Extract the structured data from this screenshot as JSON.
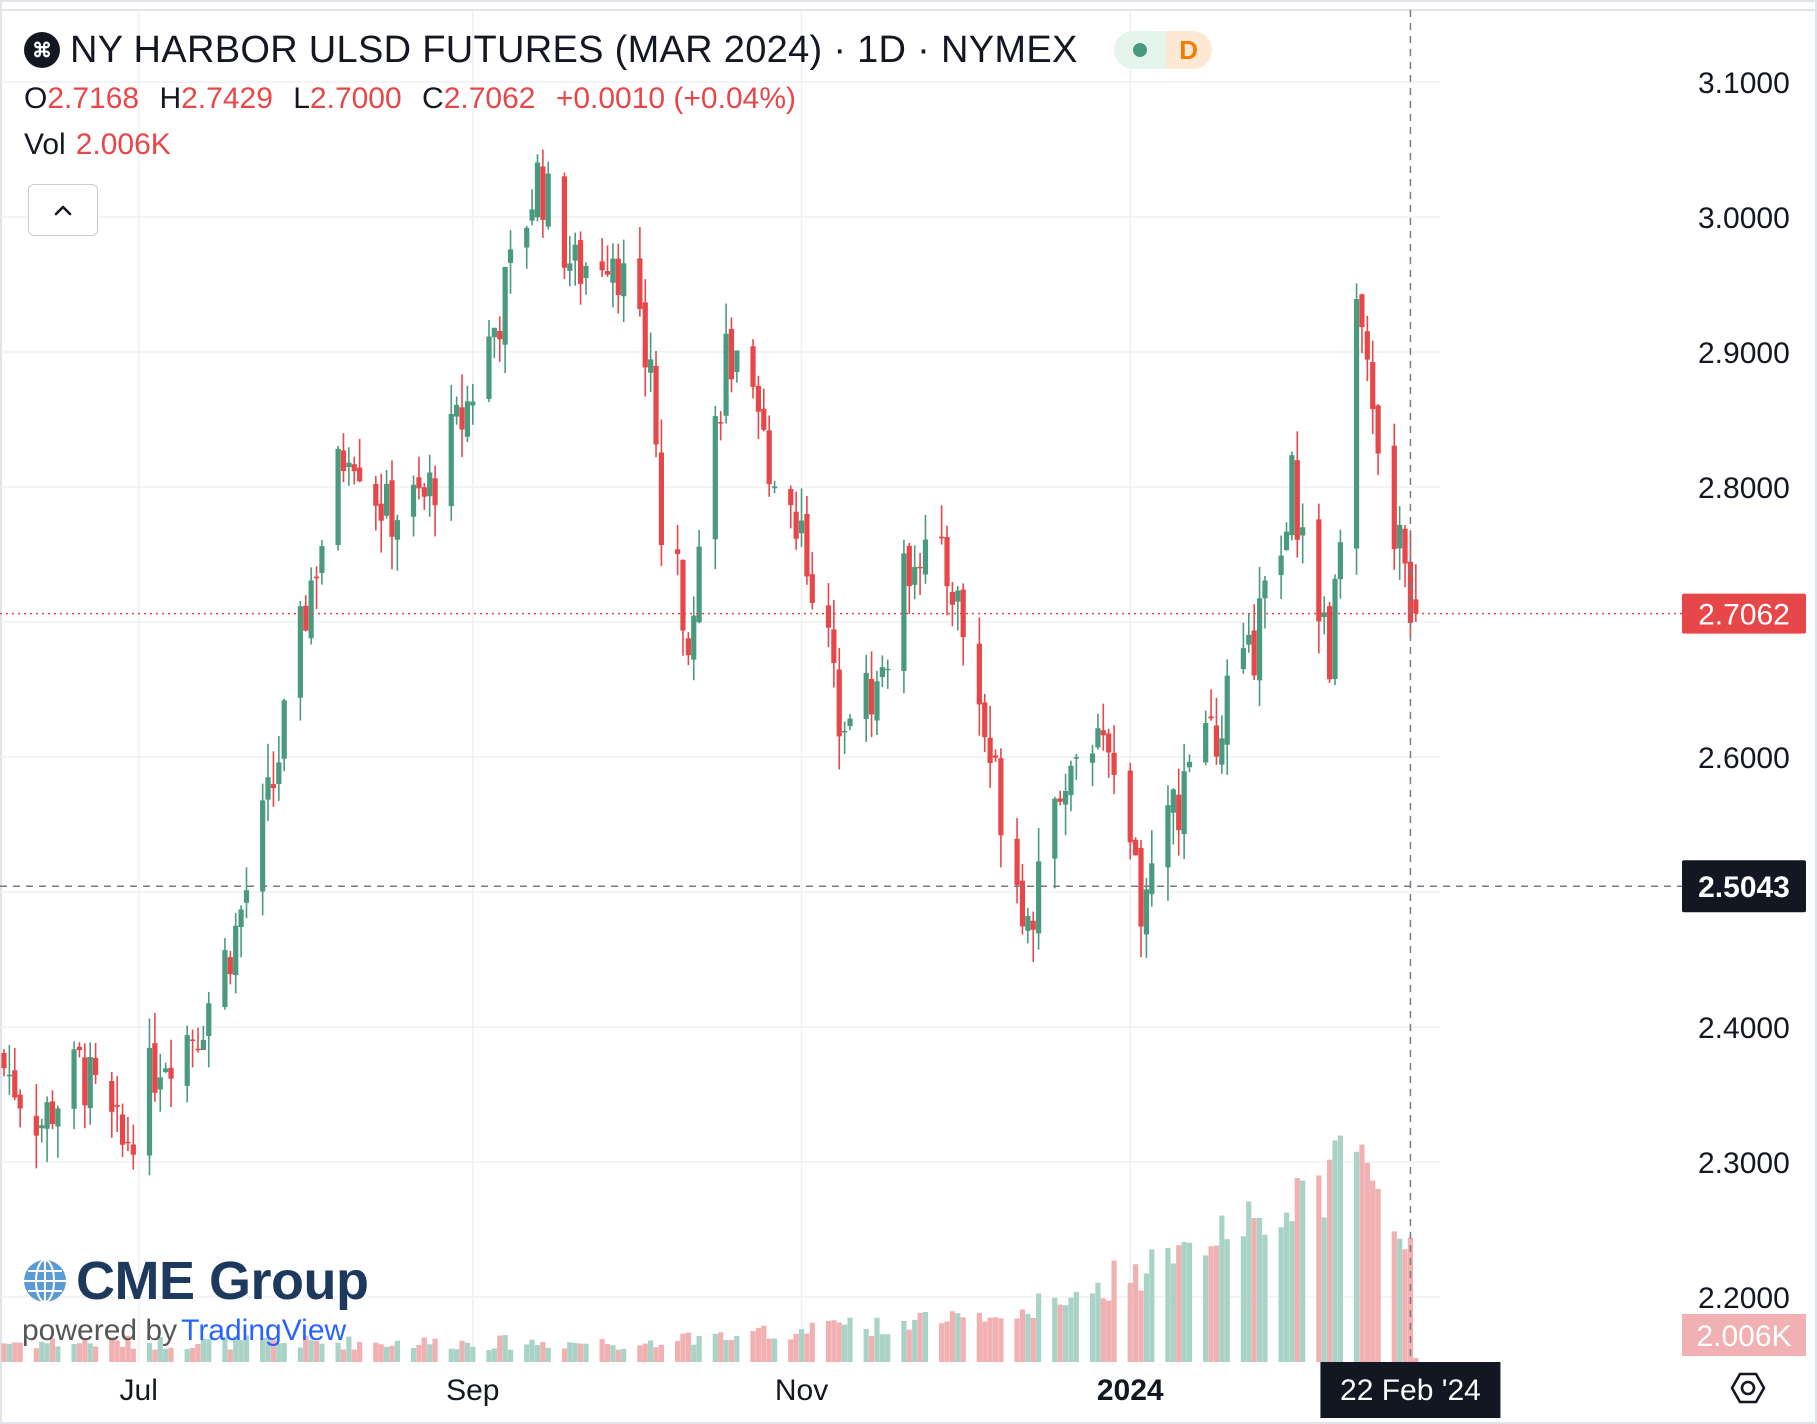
{
  "header": {
    "title": "NY HARBOR ULSD FUTURES (MAR 2024) · 1D · NYMEX",
    "interval_badge": "D",
    "ohlc": {
      "o_label": "O",
      "o_value": "2.7168",
      "h_label": "H",
      "h_value": "2.7429",
      "l_label": "L",
      "l_value": "2.7000",
      "c_label": "C",
      "c_value": "2.7062",
      "change": "+0.0010 (+0.04%)"
    },
    "vol_label": "Vol",
    "vol_value": "2.006K"
  },
  "branding": {
    "logo_text": "CME Group",
    "powered_by": "powered by",
    "tradingview": "TradingView"
  },
  "colors": {
    "up": "#4a9a7f",
    "down": "#e8474a",
    "up_volume": "#a8d3c6",
    "down_volume": "#f1b0b1",
    "grid": "#eef0f3",
    "axis_text": "#131722"
  },
  "icons": {
    "symbol": "cme-symbol-icon",
    "collapse": "chevron-up-icon",
    "settings": "settings-icon",
    "logo": "globe-icon"
  },
  "chart_data": {
    "type": "candlestick",
    "title": "NY HARBOR ULSD FUTURES (MAR 2024) · 1D · NYMEX",
    "y_ticks": [
      "3.1000",
      "3.0000",
      "2.9000",
      "2.8000",
      "2.7000",
      "2.6000",
      "2.5000",
      "2.4000",
      "2.3000",
      "2.2000"
    ],
    "y_tick_values": [
      3.1,
      3.0,
      2.9,
      2.8,
      2.7,
      2.6,
      2.5,
      2.4,
      2.3,
      2.2
    ],
    "ylim": [
      2.12,
      3.15
    ],
    "x_labels": [
      {
        "label": "Jul",
        "date": "2023-07-01"
      },
      {
        "label": "Sep",
        "date": "2023-09-01"
      },
      {
        "label": "Nov",
        "date": "2023-11-01"
      },
      {
        "label": "2024",
        "date": "2024-01-01",
        "bold": true
      }
    ],
    "x_range": [
      "2023-06-06",
      "2024-02-26"
    ],
    "last_price": "2.7062",
    "last_price_value": 2.7062,
    "crosshair_price": "2.5043",
    "crosshair_price_value": 2.5043,
    "crosshair_date": "22 Feb '24",
    "crosshair_date_value": "2024-02-22",
    "last_volume_label": "2.006K",
    "grid": true,
    "candle_anchors": [
      {
        "date": "2023-06-06",
        "close": 2.37
      },
      {
        "date": "2023-06-13",
        "close": 2.33
      },
      {
        "date": "2023-06-20",
        "close": 2.37
      },
      {
        "date": "2023-06-28",
        "close": 2.31
      },
      {
        "date": "2023-07-05",
        "close": 2.38
      },
      {
        "date": "2023-07-12",
        "close": 2.4
      },
      {
        "date": "2023-07-19",
        "close": 2.47
      },
      {
        "date": "2023-07-26",
        "close": 2.58
      },
      {
        "date": "2023-08-02",
        "close": 2.73
      },
      {
        "date": "2023-08-09",
        "close": 2.84
      },
      {
        "date": "2023-08-16",
        "close": 2.78
      },
      {
        "date": "2023-08-23",
        "close": 2.79
      },
      {
        "date": "2023-08-30",
        "close": 2.85
      },
      {
        "date": "2023-09-06",
        "close": 2.93
      },
      {
        "date": "2023-09-13",
        "close": 3.03
      },
      {
        "date": "2023-09-20",
        "close": 2.96
      },
      {
        "date": "2023-09-27",
        "close": 2.98
      },
      {
        "date": "2023-10-04",
        "close": 2.88
      },
      {
        "date": "2023-10-06",
        "close": 2.77
      },
      {
        "date": "2023-10-11",
        "close": 2.7
      },
      {
        "date": "2023-10-18",
        "close": 2.9
      },
      {
        "date": "2023-10-25",
        "close": 2.83
      },
      {
        "date": "2023-11-01",
        "close": 2.77
      },
      {
        "date": "2023-11-08",
        "close": 2.64
      },
      {
        "date": "2023-11-15",
        "close": 2.65
      },
      {
        "date": "2023-11-22",
        "close": 2.76
      },
      {
        "date": "2023-11-29",
        "close": 2.73
      },
      {
        "date": "2023-12-06",
        "close": 2.6
      },
      {
        "date": "2023-12-13",
        "close": 2.48
      },
      {
        "date": "2023-12-20",
        "close": 2.59
      },
      {
        "date": "2023-12-27",
        "close": 2.6
      },
      {
        "date": "2024-01-03",
        "close": 2.49
      },
      {
        "date": "2024-01-10",
        "close": 2.57
      },
      {
        "date": "2024-01-17",
        "close": 2.62
      },
      {
        "date": "2024-01-24",
        "close": 2.68
      },
      {
        "date": "2024-01-31",
        "close": 2.8
      },
      {
        "date": "2024-02-07",
        "close": 2.68
      },
      {
        "date": "2024-02-12",
        "close": 2.94
      },
      {
        "date": "2024-02-16",
        "close": 2.81
      },
      {
        "date": "2024-02-23",
        "close": 2.7062
      }
    ]
  }
}
